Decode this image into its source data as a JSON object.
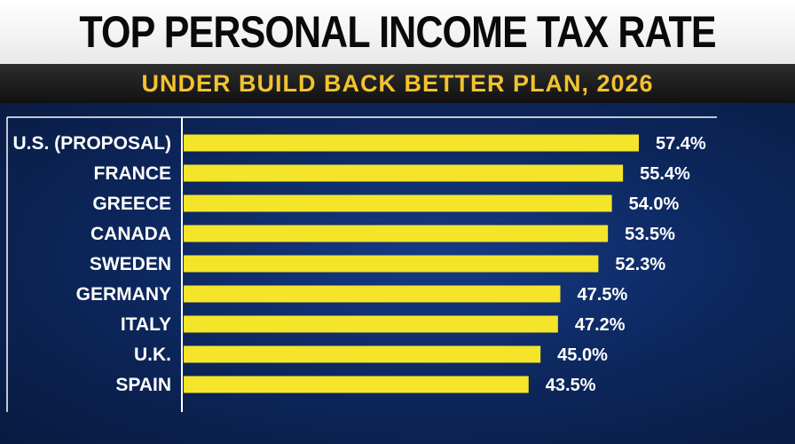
{
  "header": {
    "title": "TOP PERSONAL INCOME TAX RATE",
    "subtitle": "UNDER BUILD BACK BETTER PLAN, 2026"
  },
  "colors": {
    "bar": "#f5e52a",
    "frame": "#ffffff",
    "subtitle": "#f2c230"
  },
  "chart_data": {
    "type": "bar",
    "orientation": "horizontal",
    "title": "TOP PERSONAL INCOME TAX RATE",
    "subtitle": "UNDER BUILD BACK BETTER PLAN, 2026",
    "categories": [
      "U.S. (PROPOSAL)",
      "FRANCE",
      "GREECE",
      "CANADA",
      "SWEDEN",
      "GERMANY",
      "ITALY",
      "U.K.",
      "SPAIN"
    ],
    "values": [
      57.4,
      55.4,
      54.0,
      53.5,
      52.3,
      47.5,
      47.2,
      45.0,
      43.5
    ],
    "value_labels": [
      "57.4%",
      "55.4%",
      "54.0%",
      "53.5%",
      "52.3%",
      "47.5%",
      "47.2%",
      "45.0%",
      "43.5%"
    ],
    "xlabel": "",
    "ylabel": "",
    "grid": false,
    "legend": "none"
  }
}
